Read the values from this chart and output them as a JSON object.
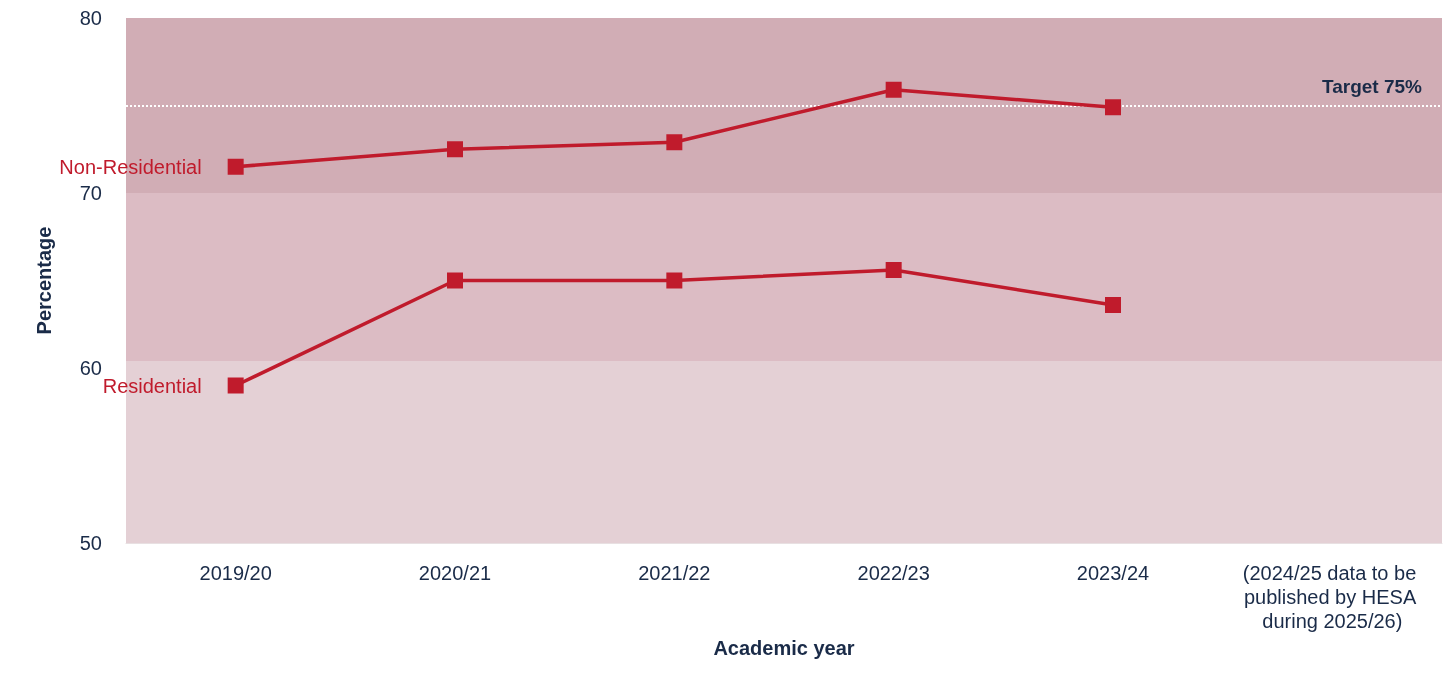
{
  "chart_data": {
    "type": "line",
    "xlabel": "Academic year",
    "ylabel": "Percentage",
    "categories": [
      "2019/20",
      "2020/21",
      "2021/22",
      "2022/23",
      "2023/24",
      "(2024/25 data to be published by HESA during 2025/26)"
    ],
    "series": [
      {
        "name": "Non-Residential",
        "color": "#c01b2c",
        "values": [
          71.5,
          72.5,
          72.9,
          75.9,
          74.9,
          null
        ]
      },
      {
        "name": "Residential",
        "color": "#c01b2c",
        "values": [
          59.0,
          65.0,
          65.0,
          65.6,
          63.6,
          null
        ]
      }
    ],
    "ylim": [
      50,
      80
    ],
    "yticks": [
      50,
      60,
      70,
      80
    ],
    "grid": false,
    "legend": false,
    "marker": "square",
    "line_style": "solid",
    "ref_lines": [
      {
        "axis": "y",
        "value": 75,
        "label": "Target 75%",
        "color": "#ffffff",
        "line_style": "dotted"
      }
    ],
    "bands": [
      {
        "axis": "y",
        "from": 50,
        "to": 60.4,
        "color": "#e4d0d5"
      },
      {
        "axis": "y",
        "from": 60.4,
        "to": 70,
        "color": "#dcbcc4"
      },
      {
        "axis": "y",
        "from": 70,
        "to": 80,
        "color": "#d1adb5"
      }
    ]
  }
}
